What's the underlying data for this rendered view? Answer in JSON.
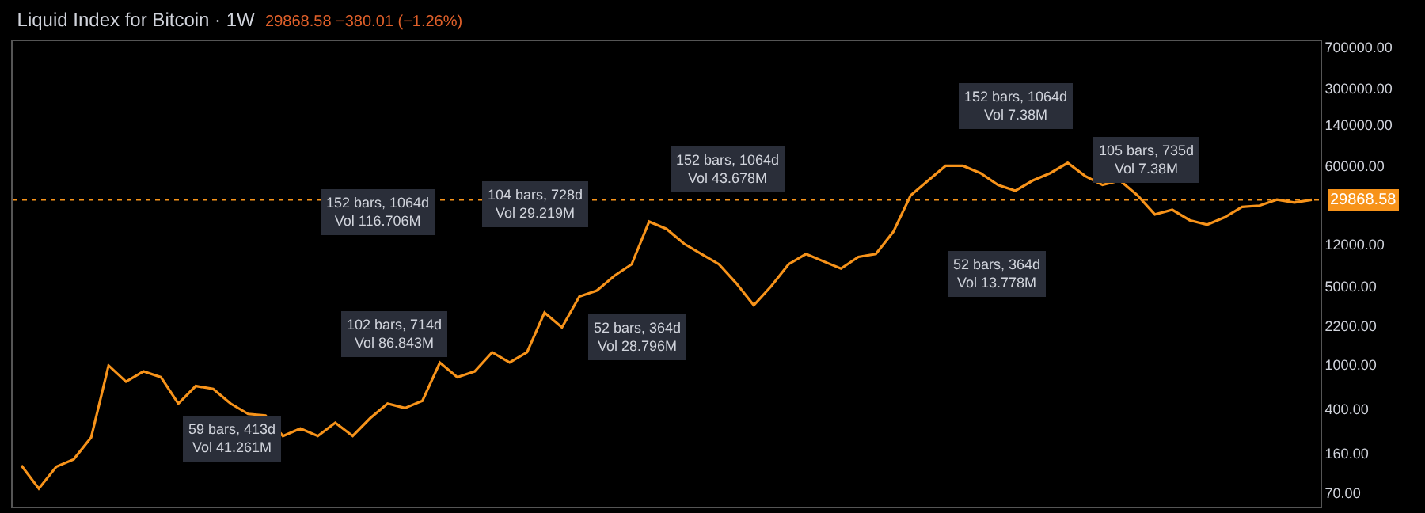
{
  "chart_data": {
    "type": "line",
    "title": "Liquid Index for Bitcoin · 1W",
    "subtitle": "29868.58 −380.01 (−1.26%)",
    "categories": [
      null,
      null,
      null,
      null,
      null,
      null,
      null,
      null,
      null,
      null,
      null,
      null,
      null,
      null,
      null,
      null,
      null,
      null,
      null,
      null,
      null,
      null,
      null,
      null,
      null,
      null,
      null,
      null,
      null,
      null,
      null,
      null,
      null,
      null,
      null,
      null,
      null,
      null,
      null,
      null,
      null,
      null,
      null,
      null,
      null,
      null,
      null,
      null,
      null,
      null,
      null,
      null,
      null,
      null,
      null,
      null,
      null,
      null,
      null,
      null,
      null,
      null,
      null,
      null,
      null,
      null,
      null,
      null,
      null,
      null,
      null,
      null,
      null,
      null,
      null
    ],
    "series": [
      {
        "color": "#f7931a",
        "values": [
          124,
          77,
          121,
          141,
          221,
          977,
          700,
          867,
          768,
          445,
          640,
          603,
          445,
          360,
          349,
          228,
          266,
          228,
          300,
          228,
          329,
          445,
          406,
          472,
          1038,
          768,
          867,
          1284,
          1038,
          1284,
          2911,
          2148,
          4064,
          4585,
          6209,
          7907,
          19050,
          16370,
          12080,
          9770,
          7907,
          5330,
          3390,
          5020,
          7907,
          9770,
          8390,
          7220,
          9200,
          9770,
          15420,
          32800,
          44500,
          60300,
          60300,
          51800,
          40600,
          36000,
          44500,
          51800,
          64000,
          48800,
          40600,
          44500,
          32800,
          22100,
          24300,
          19600,
          17900,
          20800,
          25800,
          26500,
          30000,
          28200,
          29868.58
        ]
      }
    ],
    "ylim": [
      53,
      790000
    ],
    "yticks": [
      {
        "value": 70,
        "label": "70.00"
      },
      {
        "value": 160,
        "label": "160.00"
      },
      {
        "value": 400,
        "label": "400.00"
      },
      {
        "value": 1000,
        "label": "1000.00"
      },
      {
        "value": 2200,
        "label": "2200.00"
      },
      {
        "value": 5000,
        "label": "5000.00"
      },
      {
        "value": 12000,
        "label": "12000.00"
      },
      {
        "value": 60000,
        "label": "60000.00"
      },
      {
        "value": 140000,
        "label": "140000.00"
      },
      {
        "value": 300000,
        "label": "300000.00"
      },
      {
        "value": 700000,
        "label": "700000.00"
      }
    ],
    "log": true,
    "grid": false,
    "tick_labels": "y",
    "marker": "none",
    "line_style": "solid",
    "ref_lines": [
      {
        "axis": "y",
        "value": 29868.58,
        "label": "29868.58",
        "color": "#f7931a",
        "line_style": "dotted"
      }
    ],
    "annotations": [
      "59 bars, 413d\nVol 41.261M",
      "102 bars, 714d\nVol 86.843M",
      "152 bars, 1064d\nVol 116.706M",
      "52 bars, 364d\nVol 28.796M",
      "104 bars, 728d\nVol 29.219M",
      "152 bars, 1064d\nVol 43.678M",
      "52 bars, 364d\nVol 13.778M",
      "105 bars, 735d\nVol 7.38M",
      "152 bars, 1064d\nVol 7.38M"
    ]
  }
}
